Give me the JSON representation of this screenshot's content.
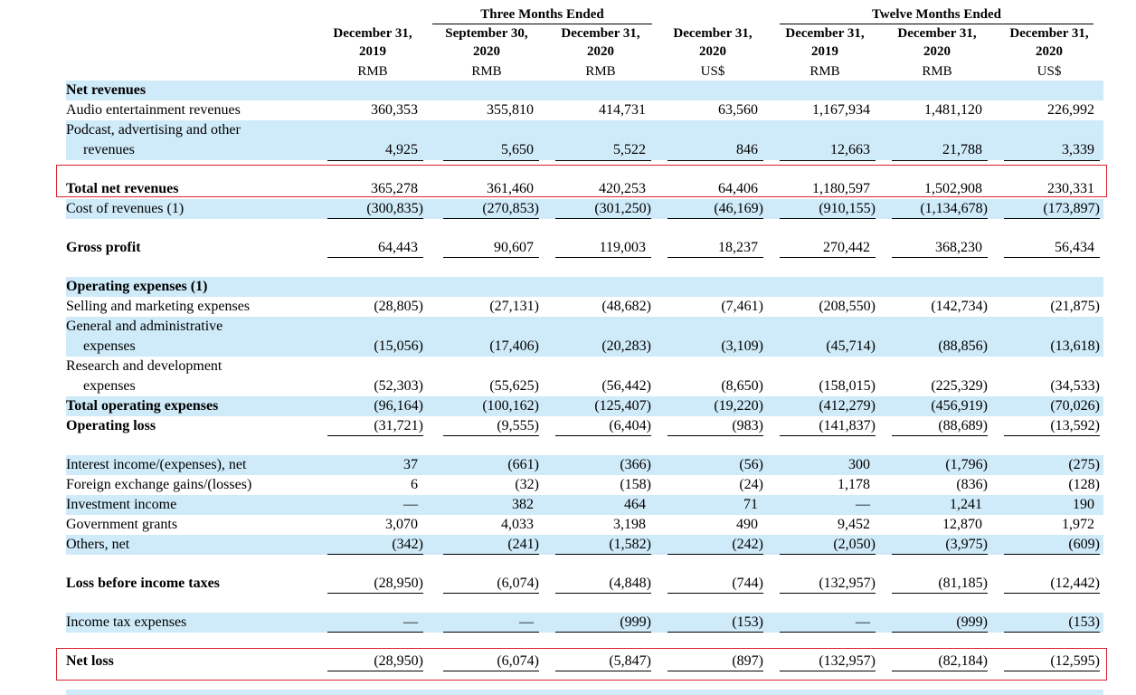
{
  "groups": [
    {
      "title": "Three Months Ended"
    },
    {
      "title": "Twelve Months Ended"
    }
  ],
  "columns": [
    {
      "line1": "December 31,",
      "line2": "2019",
      "currency": "RMB"
    },
    {
      "line1": "September 30,",
      "line2": "2020",
      "currency": "RMB"
    },
    {
      "line1": "December 31,",
      "line2": "2020",
      "currency": "RMB"
    },
    {
      "line1": "December 31,",
      "line2": "2020",
      "currency": "US$"
    },
    {
      "line1": "December 31,",
      "line2": "2019",
      "currency": "RMB"
    },
    {
      "line1": "December 31,",
      "line2": "2020",
      "currency": "RMB"
    },
    {
      "line1": "December 31,",
      "line2": "2020",
      "currency": "US$"
    }
  ],
  "rows": {
    "net_revenues_header": {
      "label": "Net revenues"
    },
    "audio": {
      "label": "Audio entertainment revenues",
      "values": [
        "360,353",
        "355,810",
        "414,731",
        "63,560",
        "1,167,934",
        "1,481,120",
        "226,992"
      ]
    },
    "podcast": {
      "label1": "Podcast, advertising and other",
      "label2": "revenues",
      "values": [
        "4,925",
        "5,650",
        "5,522",
        "846",
        "12,663",
        "21,788",
        "3,339"
      ]
    },
    "total_net_revenues": {
      "label": "Total net revenues",
      "values": [
        "365,278",
        "361,460",
        "420,253",
        "64,406",
        "1,180,597",
        "1,502,908",
        "230,331"
      ]
    },
    "cost_of_revenues": {
      "label": "Cost of revenues (1)",
      "values": [
        "(300,835)",
        "(270,853)",
        "(301,250)",
        "(46,169)",
        "(910,155)",
        "(1,134,678)",
        "(173,897)"
      ]
    },
    "gross_profit": {
      "label": "Gross profit",
      "values": [
        "64,443",
        "90,607",
        "119,003",
        "18,237",
        "270,442",
        "368,230",
        "56,434"
      ]
    },
    "opex_header": {
      "label": "Operating expenses (1)"
    },
    "selling": {
      "label": "Selling and marketing expenses",
      "values": [
        "(28,805)",
        "(27,131)",
        "(48,682)",
        "(7,461)",
        "(208,550)",
        "(142,734)",
        "(21,875)"
      ]
    },
    "general": {
      "label1": "General and administrative",
      "label2": "expenses",
      "values": [
        "(15,056)",
        "(17,406)",
        "(20,283)",
        "(3,109)",
        "(45,714)",
        "(88,856)",
        "(13,618)"
      ]
    },
    "research": {
      "label1": "Research and development",
      "label2": "expenses",
      "values": [
        "(52,303)",
        "(55,625)",
        "(56,442)",
        "(8,650)",
        "(158,015)",
        "(225,329)",
        "(34,533)"
      ]
    },
    "total_opex": {
      "label": "Total operating expenses",
      "values": [
        "(96,164)",
        "(100,162)",
        "(125,407)",
        "(19,220)",
        "(412,279)",
        "(456,919)",
        "(70,026)"
      ]
    },
    "operating_loss": {
      "label": "Operating loss",
      "values": [
        "(31,721)",
        "(9,555)",
        "(6,404)",
        "(983)",
        "(141,837)",
        "(88,689)",
        "(13,592)"
      ]
    },
    "interest": {
      "label": "Interest income/(expenses), net",
      "values": [
        "37",
        "(661)",
        "(366)",
        "(56)",
        "300",
        "(1,796)",
        "(275)"
      ]
    },
    "fx": {
      "label": "Foreign exchange gains/(losses)",
      "values": [
        "6",
        "(32)",
        "(158)",
        "(24)",
        "1,178",
        "(836)",
        "(128)"
      ]
    },
    "investment": {
      "label": "Investment income",
      "values": [
        "—",
        "382",
        "464",
        "71",
        "—",
        "1,241",
        "190"
      ]
    },
    "grants": {
      "label": "Government grants",
      "values": [
        "3,070",
        "4,033",
        "3,198",
        "490",
        "9,452",
        "12,870",
        "1,972"
      ]
    },
    "others": {
      "label": "Others, net",
      "values": [
        "(342)",
        "(241)",
        "(1,582)",
        "(242)",
        "(2,050)",
        "(3,975)",
        "(609)"
      ]
    },
    "loss_before_tax": {
      "label": "Loss before income taxes",
      "values": [
        "(28,950)",
        "(6,074)",
        "(4,848)",
        "(744)",
        "(132,957)",
        "(81,185)",
        "(12,442)"
      ]
    },
    "income_tax": {
      "label": "Income tax expenses",
      "values": [
        "—",
        "—",
        "(999)",
        "(153)",
        "—",
        "(999)",
        "(153)"
      ]
    },
    "net_loss": {
      "label": "Net loss",
      "values": [
        "(28,950)",
        "(6,074)",
        "(5,847)",
        "(897)",
        "(132,957)",
        "(82,184)",
        "(12,595)"
      ]
    }
  },
  "colors": {
    "band": "#cfeaf8",
    "highlight": "#d9232e"
  }
}
